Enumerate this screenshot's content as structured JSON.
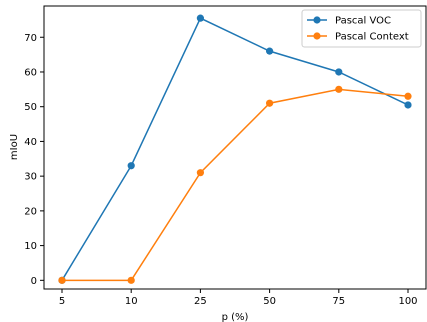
{
  "chart_data": {
    "type": "line",
    "title": "",
    "xlabel": "p (%)",
    "ylabel": "mIoU",
    "categories": [
      "5",
      "10",
      "25",
      "50",
      "75",
      "100"
    ],
    "y_ticks": [
      0,
      10,
      20,
      30,
      40,
      50,
      60,
      70
    ],
    "ylim": [
      -2.5,
      79
    ],
    "grid": false,
    "legend_position": "top-right",
    "series": [
      {
        "name": "Pascal VOC",
        "color": "#1f77b4",
        "values": [
          0,
          33,
          75.5,
          66,
          60,
          50.5
        ]
      },
      {
        "name": "Pascal Context",
        "color": "#ff7f0e",
        "values": [
          0,
          0,
          31,
          51,
          55,
          53
        ]
      }
    ]
  }
}
